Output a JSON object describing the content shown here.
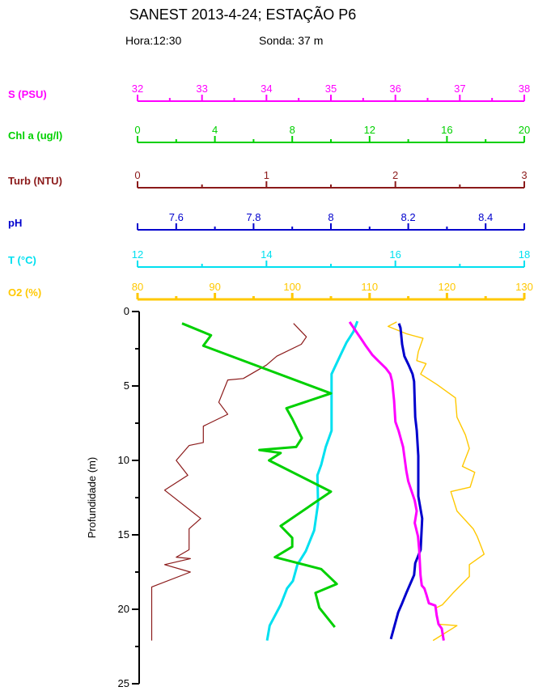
{
  "page": {
    "title": "SANEST 2013-4-24; ESTAÇÃO P6",
    "hora": "Hora:12:30",
    "sonda": "Sonda: 37 m"
  },
  "chart_data": {
    "type": "line",
    "title": "SANEST 2013-4-24; ESTAÇÃO P6",
    "subtitle": "Hora:12:30   Sonda: 37 m",
    "orientation": "vertical-depth-profile",
    "ylabel": "Profundidade (m)",
    "ylim": [
      0,
      25
    ],
    "y_axis_color": "#000000",
    "depth_major_ticks": [
      0,
      5,
      10,
      15,
      20,
      25
    ],
    "depth_minor_ticks": [
      2.5,
      7.5,
      12.5,
      17.5,
      22.5
    ],
    "grid": false,
    "legend_position": "stacked-top-axes",
    "points_format": "[depth_m, value]",
    "axes": [
      {
        "id": "s",
        "label": "S (PSU)",
        "color": "#FF00FF",
        "min": 32,
        "max": 38,
        "major_ticks": [
          32,
          33,
          34,
          35,
          36,
          37,
          38
        ],
        "minor_step": 0.5,
        "line_width": 2
      },
      {
        "id": "chl",
        "label": "Chl a (ug/l)",
        "color": "#00D000",
        "min": 0,
        "max": 20,
        "major_ticks": [
          0,
          4,
          8,
          12,
          16,
          20
        ],
        "minor_step": 2,
        "line_width": 2
      },
      {
        "id": "turb",
        "label": "Turb (NTU)",
        "color": "#8B1A1A",
        "min": 0,
        "max": 3,
        "major_ticks": [
          0,
          1,
          2,
          3
        ],
        "minor_step": 0.5,
        "line_width": 2
      },
      {
        "id": "ph",
        "label": "pH",
        "color": "#0000CD",
        "min": 7.5,
        "max": 8.5,
        "major_ticks": [
          7.6,
          7.8,
          8,
          8.2,
          8.4
        ],
        "minor_step": 0.1,
        "line_width": 2
      },
      {
        "id": "t",
        "label": "T (°C)",
        "color": "#00E0F0",
        "min": 12,
        "max": 18,
        "major_ticks": [
          12,
          14,
          16,
          18
        ],
        "minor_step": 1,
        "line_width": 2
      },
      {
        "id": "o2",
        "label": "O2 (%)",
        "color": "#FFC800",
        "min": 80,
        "max": 130,
        "major_ticks": [
          80,
          90,
          100,
          110,
          120,
          130
        ],
        "minor_step": 5,
        "line_width": 3
      }
    ],
    "series": [
      {
        "name": "Turb (NTU)",
        "axis": "turb",
        "color": "#8B1A1A",
        "width": 1.2,
        "points": [
          [
            0.8,
            1.21
          ],
          [
            1.7,
            1.31
          ],
          [
            2.2,
            1.27
          ],
          [
            3.0,
            1.08
          ],
          [
            3.6,
            1.0
          ],
          [
            4.5,
            0.82
          ],
          [
            4.6,
            0.7
          ],
          [
            6.1,
            0.63
          ],
          [
            6.9,
            0.7
          ],
          [
            7.7,
            0.51
          ],
          [
            8.8,
            0.51
          ],
          [
            9.0,
            0.4
          ],
          [
            10.0,
            0.3
          ],
          [
            11.0,
            0.39
          ],
          [
            12.0,
            0.21
          ],
          [
            13.9,
            0.49
          ],
          [
            14.6,
            0.4
          ],
          [
            16.0,
            0.4
          ],
          [
            16.5,
            0.3
          ],
          [
            16.6,
            0.41
          ],
          [
            17.0,
            0.21
          ],
          [
            17.5,
            0.41
          ],
          [
            18.5,
            0.11
          ],
          [
            22.1,
            0.11
          ]
        ]
      },
      {
        "name": "O2 (%)",
        "axis": "o2",
        "color": "#FFC800",
        "width": 1.4,
        "points": [
          [
            0.7,
            113.5
          ],
          [
            1.0,
            112.4
          ],
          [
            1.5,
            114.8
          ],
          [
            1.8,
            116.9
          ],
          [
            2.7,
            116.3
          ],
          [
            3.3,
            116.1
          ],
          [
            3.5,
            117.3
          ],
          [
            4.2,
            116.6
          ],
          [
            4.9,
            118.7
          ],
          [
            5.8,
            121.1
          ],
          [
            7.1,
            121.3
          ],
          [
            8.3,
            122.4
          ],
          [
            9.2,
            122.9
          ],
          [
            10.4,
            122.0
          ],
          [
            10.8,
            123.6
          ],
          [
            11.8,
            123.0
          ],
          [
            12.1,
            120.5
          ],
          [
            13.4,
            121.3
          ],
          [
            14.6,
            123.4
          ],
          [
            15.1,
            123.9
          ],
          [
            16.3,
            124.8
          ],
          [
            17.0,
            122.9
          ],
          [
            17.8,
            122.9
          ],
          [
            18.9,
            120.8
          ],
          [
            19.7,
            119.4
          ],
          [
            19.9,
            118.6
          ],
          [
            21.0,
            118.9
          ],
          [
            21.1,
            121.3
          ],
          [
            22.1,
            118.2
          ]
        ]
      },
      {
        "name": "T (°C)",
        "axis": "t",
        "color": "#00E0F0",
        "width": 3,
        "points": [
          [
            0.65,
            15.41
          ],
          [
            1.35,
            15.35
          ],
          [
            2.1,
            15.24
          ],
          [
            3.0,
            15.14
          ],
          [
            4.2,
            15.01
          ],
          [
            5.2,
            15.01
          ],
          [
            8.0,
            15.01
          ],
          [
            9.1,
            14.92
          ],
          [
            10.3,
            14.85
          ],
          [
            11.0,
            14.79
          ],
          [
            12.9,
            14.8
          ],
          [
            14.7,
            14.74
          ],
          [
            16.1,
            14.61
          ],
          [
            17.0,
            14.48
          ],
          [
            18.1,
            14.41
          ],
          [
            18.6,
            14.32
          ],
          [
            19.7,
            14.22
          ],
          [
            21.1,
            14.05
          ],
          [
            22.1,
            14.01
          ]
        ]
      },
      {
        "name": "Chl a (ug/l)",
        "axis": "chl",
        "color": "#00D000",
        "width": 3,
        "points": [
          [
            0.8,
            2.3
          ],
          [
            1.6,
            3.8
          ],
          [
            2.3,
            3.4
          ],
          [
            5.5,
            10.0
          ],
          [
            6.5,
            7.7
          ],
          [
            7.2,
            8.0
          ],
          [
            8.0,
            8.3
          ],
          [
            8.5,
            8.5
          ],
          [
            9.1,
            8.2
          ],
          [
            9.3,
            6.3
          ],
          [
            9.5,
            7.4
          ],
          [
            10.0,
            6.8
          ],
          [
            12.1,
            10.0
          ],
          [
            14.4,
            7.4
          ],
          [
            15.2,
            8.0
          ],
          [
            15.8,
            8.0
          ],
          [
            16.5,
            7.1
          ],
          [
            17.3,
            9.5
          ],
          [
            18.3,
            10.3
          ],
          [
            18.9,
            9.2
          ],
          [
            19.9,
            9.4
          ],
          [
            21.2,
            10.2
          ]
        ]
      },
      {
        "name": "pH",
        "axis": "ph",
        "color": "#0000CD",
        "width": 3,
        "points": [
          [
            0.8,
            8.176
          ],
          [
            1.1,
            8.18
          ],
          [
            2.2,
            8.184
          ],
          [
            3.0,
            8.19
          ],
          [
            3.6,
            8.201
          ],
          [
            4.2,
            8.211
          ],
          [
            4.7,
            8.215
          ],
          [
            7.1,
            8.218
          ],
          [
            8.0,
            8.222
          ],
          [
            9.7,
            8.226
          ],
          [
            12.4,
            8.226
          ],
          [
            13.9,
            8.236
          ],
          [
            16.0,
            8.232
          ],
          [
            16.9,
            8.218
          ],
          [
            17.7,
            8.215
          ],
          [
            18.9,
            8.195
          ],
          [
            19.6,
            8.184
          ],
          [
            20.2,
            8.174
          ],
          [
            22.0,
            8.155
          ]
        ]
      },
      {
        "name": "S (PSU)",
        "axis": "s",
        "color": "#FF00FF",
        "width": 3,
        "points": [
          [
            0.7,
            35.29
          ],
          [
            1.9,
            35.48
          ],
          [
            2.3,
            35.54
          ],
          [
            2.9,
            35.64
          ],
          [
            3.3,
            35.73
          ],
          [
            3.8,
            35.85
          ],
          [
            4.2,
            35.92
          ],
          [
            4.7,
            35.95
          ],
          [
            6.0,
            35.98
          ],
          [
            7.4,
            36.0
          ],
          [
            8.0,
            36.05
          ],
          [
            9.1,
            36.12
          ],
          [
            10.7,
            36.17
          ],
          [
            11.4,
            36.2
          ],
          [
            12.7,
            36.3
          ],
          [
            13.4,
            36.33
          ],
          [
            14.2,
            36.3
          ],
          [
            15.1,
            36.35
          ],
          [
            16.0,
            36.37
          ],
          [
            17.7,
            36.39
          ],
          [
            18.4,
            36.41
          ],
          [
            18.6,
            36.45
          ],
          [
            19.0,
            36.48
          ],
          [
            19.6,
            36.52
          ],
          [
            19.75,
            36.62
          ],
          [
            20.4,
            36.64
          ],
          [
            21.0,
            36.67
          ],
          [
            21.3,
            36.72
          ],
          [
            22.1,
            36.75
          ]
        ]
      }
    ]
  }
}
